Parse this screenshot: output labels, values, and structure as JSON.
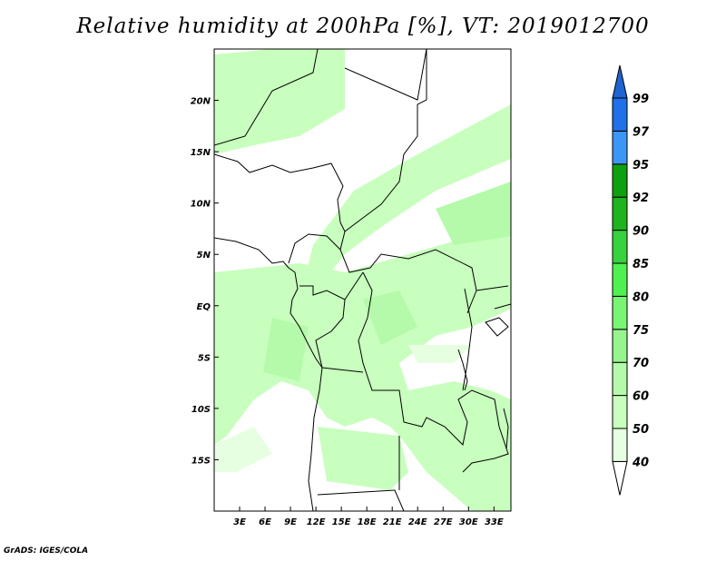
{
  "title": "Relative humidity at 200hPa [%], VT: 2019012700",
  "footer": "GrADS: IGES/COLA",
  "chart_data": {
    "type": "heatmap",
    "title": "Relative humidity at 200hPa [%], VT: 2019012700",
    "variable": "Relative humidity",
    "units": "%",
    "lon_range": [
      0,
      35
    ],
    "lat_range": [
      -20,
      25
    ],
    "lon_ticks": [
      {
        "value": 3,
        "label": "3E"
      },
      {
        "value": 6,
        "label": "6E"
      },
      {
        "value": 9,
        "label": "9E"
      },
      {
        "value": 12,
        "label": "12E"
      },
      {
        "value": 15,
        "label": "15E"
      },
      {
        "value": 18,
        "label": "18E"
      },
      {
        "value": 21,
        "label": "21E"
      },
      {
        "value": 24,
        "label": "24E"
      },
      {
        "value": 27,
        "label": "27E"
      },
      {
        "value": 30,
        "label": "30E"
      },
      {
        "value": 33,
        "label": "33E"
      }
    ],
    "lat_ticks": [
      {
        "value": 20,
        "label": "20N"
      },
      {
        "value": 15,
        "label": "15N"
      },
      {
        "value": 10,
        "label": "10N"
      },
      {
        "value": 5,
        "label": "5N"
      },
      {
        "value": 0,
        "label": "EQ"
      },
      {
        "value": -5,
        "label": "5S"
      },
      {
        "value": -10,
        "label": "10S"
      },
      {
        "value": -15,
        "label": "15S"
      }
    ],
    "colorbar": {
      "levels": [
        "40",
        "50",
        "60",
        "70",
        "75",
        "80",
        "85",
        "90",
        "92",
        "95",
        "97",
        "99"
      ],
      "colors": [
        "#ffffff",
        "#e6ffe1",
        "#c8ffbe",
        "#b4faaa",
        "#96f58c",
        "#78f573",
        "#50f050",
        "#37d23c",
        "#1eb41e",
        "#0fa00f",
        "#3c96f5",
        "#2070e8",
        "#1e64d2"
      ]
    }
  }
}
